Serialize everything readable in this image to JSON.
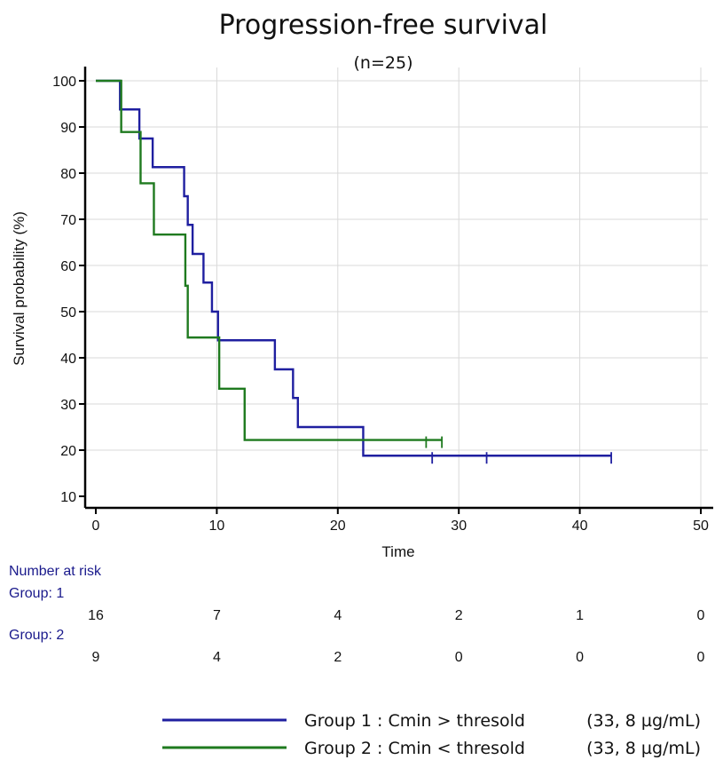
{
  "chart_data": {
    "type": "line",
    "subtype": "kaplan-meier step",
    "title": "Progression-free survival",
    "subtitle": "(n=25)",
    "xlabel": "Time",
    "ylabel": "Survival probability (%)",
    "xlim": [
      0,
      50
    ],
    "ylim": [
      10,
      100
    ],
    "x_ticks": [
      0,
      10,
      20,
      30,
      40,
      50
    ],
    "y_ticks": [
      10,
      20,
      30,
      40,
      50,
      60,
      70,
      80,
      90,
      100
    ],
    "grid": true,
    "series": [
      {
        "name": "Group 1 : Cmin > thresold",
        "color": "#1f1fa0",
        "steps": [
          {
            "x": 0,
            "y": 100
          },
          {
            "x": 2.0,
            "y": 93.8
          },
          {
            "x": 3.6,
            "y": 87.5
          },
          {
            "x": 4.7,
            "y": 81.3
          },
          {
            "x": 7.3,
            "y": 75.0
          },
          {
            "x": 7.6,
            "y": 68.8
          },
          {
            "x": 8.0,
            "y": 62.5
          },
          {
            "x": 8.9,
            "y": 56.3
          },
          {
            "x": 9.6,
            "y": 50.0
          },
          {
            "x": 10.1,
            "y": 43.8
          },
          {
            "x": 14.8,
            "y": 37.5
          },
          {
            "x": 16.3,
            "y": 31.3
          },
          {
            "x": 16.7,
            "y": 25.0
          },
          {
            "x": 22.1,
            "y": 18.8
          }
        ],
        "end_x": 42.6,
        "censored": [
          27.8,
          32.3,
          42.6
        ]
      },
      {
        "name": "Group 2 : Cmin < thresold",
        "color": "#1f7a1f",
        "steps": [
          {
            "x": 0,
            "y": 100
          },
          {
            "x": 2.1,
            "y": 88.9
          },
          {
            "x": 3.7,
            "y": 77.8
          },
          {
            "x": 4.8,
            "y": 66.7
          },
          {
            "x": 7.4,
            "y": 55.6
          },
          {
            "x": 7.6,
            "y": 44.4
          },
          {
            "x": 10.2,
            "y": 33.3
          },
          {
            "x": 12.3,
            "y": 22.2
          }
        ],
        "end_x": 28.6,
        "censored": [
          27.3,
          28.6
        ]
      }
    ],
    "number_at_risk": {
      "heading": "Number at risk",
      "times": [
        0,
        10,
        20,
        30,
        40,
        50
      ],
      "groups": [
        {
          "label": "Group: 1",
          "counts": [
            "16",
            "7",
            "4",
            "2",
            "1",
            "0"
          ]
        },
        {
          "label": "Group: 2",
          "counts": [
            "9",
            "4",
            "2",
            "0",
            "0",
            "0"
          ]
        }
      ]
    },
    "legend": [
      {
        "label": "Group 1 : Cmin > thresold",
        "detail": "(33, 8 µg/mL)",
        "color": "#1f1fa0"
      },
      {
        "label": "Group 2 : Cmin < thresold",
        "detail": "(33, 8 µg/mL)",
        "color": "#1f7a1f"
      }
    ]
  }
}
